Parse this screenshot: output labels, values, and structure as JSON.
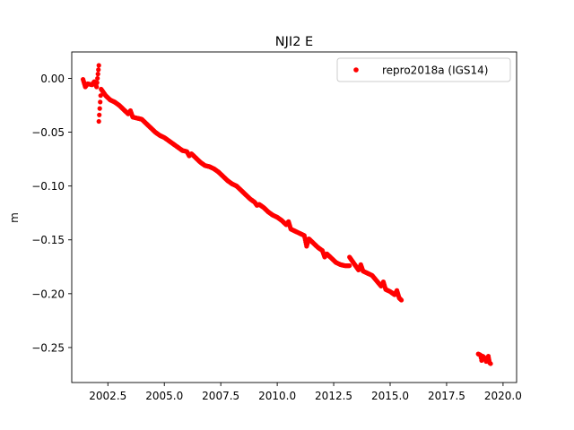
{
  "chart_data": {
    "type": "scatter",
    "title": "NJI2 E",
    "xlabel": "",
    "ylabel": "m",
    "xlim": [
      2000.9,
      2020.6
    ],
    "ylim": [
      -0.2825,
      0.0245
    ],
    "xticks": [
      2002.5,
      2005.0,
      2007.5,
      2010.0,
      2012.5,
      2015.0,
      2017.5,
      2020.0
    ],
    "xtick_labels": [
      "2002.5",
      "2005.0",
      "2007.5",
      "2010.0",
      "2012.5",
      "2015.0",
      "2017.5",
      "2020.0"
    ],
    "yticks": [
      0.0,
      -0.05,
      -0.1,
      -0.15,
      -0.2,
      -0.25
    ],
    "ytick_labels": [
      "0.00",
      "−0.05",
      "−0.10",
      "−0.15",
      "−0.20",
      "−0.25"
    ],
    "grid": false,
    "legend_position": "top-right",
    "series": [
      {
        "name": "repro2018a (IGS14)",
        "color": "#ff0000",
        "marker": "circle",
        "points": [
          [
            2001.4,
            -0.001
          ],
          [
            2001.6,
            -0.005
          ],
          [
            2001.8,
            -0.006
          ],
          [
            2002.0,
            -0.008
          ],
          [
            2002.2,
            -0.01
          ],
          [
            2002.4,
            -0.016
          ],
          [
            2002.6,
            -0.02
          ],
          [
            2002.8,
            -0.022
          ],
          [
            2003.0,
            -0.025
          ],
          [
            2003.2,
            -0.029
          ],
          [
            2003.4,
            -0.033
          ],
          [
            2003.6,
            -0.036
          ],
          [
            2003.8,
            -0.037
          ],
          [
            2004.0,
            -0.038
          ],
          [
            2004.2,
            -0.042
          ],
          [
            2004.4,
            -0.046
          ],
          [
            2004.6,
            -0.05
          ],
          [
            2004.8,
            -0.053
          ],
          [
            2005.0,
            -0.055
          ],
          [
            2005.2,
            -0.058
          ],
          [
            2005.4,
            -0.061
          ],
          [
            2005.6,
            -0.064
          ],
          [
            2005.8,
            -0.067
          ],
          [
            2006.0,
            -0.068
          ],
          [
            2006.2,
            -0.07
          ],
          [
            2006.4,
            -0.074
          ],
          [
            2006.6,
            -0.078
          ],
          [
            2006.8,
            -0.081
          ],
          [
            2007.0,
            -0.082
          ],
          [
            2007.2,
            -0.084
          ],
          [
            2007.4,
            -0.087
          ],
          [
            2007.6,
            -0.091
          ],
          [
            2007.8,
            -0.095
          ],
          [
            2008.0,
            -0.098
          ],
          [
            2008.2,
            -0.1
          ],
          [
            2008.4,
            -0.104
          ],
          [
            2008.6,
            -0.108
          ],
          [
            2008.8,
            -0.112
          ],
          [
            2009.0,
            -0.115
          ],
          [
            2009.2,
            -0.117
          ],
          [
            2009.4,
            -0.12
          ],
          [
            2009.6,
            -0.124
          ],
          [
            2009.8,
            -0.127
          ],
          [
            2010.0,
            -0.129
          ],
          [
            2010.2,
            -0.132
          ],
          [
            2010.4,
            -0.136
          ],
          [
            2010.6,
            -0.14
          ],
          [
            2010.8,
            -0.142
          ],
          [
            2011.0,
            -0.144
          ],
          [
            2011.2,
            -0.146
          ],
          [
            2011.4,
            -0.149
          ],
          [
            2011.6,
            -0.153
          ],
          [
            2011.8,
            -0.157
          ],
          [
            2012.0,
            -0.16
          ],
          [
            2012.2,
            -0.163
          ],
          [
            2012.4,
            -0.167
          ],
          [
            2012.6,
            -0.171
          ],
          [
            2012.8,
            -0.173
          ],
          [
            2013.0,
            -0.174
          ],
          [
            2013.2,
            -0.174
          ],
          [
            2013.6,
            -0.178
          ],
          [
            2013.8,
            -0.179
          ],
          [
            2014.0,
            -0.181
          ],
          [
            2014.2,
            -0.183
          ],
          [
            2014.4,
            -0.188
          ],
          [
            2014.6,
            -0.193
          ],
          [
            2014.8,
            -0.196
          ],
          [
            2015.0,
            -0.198
          ],
          [
            2015.2,
            -0.201
          ],
          [
            2015.4,
            -0.204
          ],
          [
            2015.5,
            -0.206
          ],
          [
            2002.1,
            0.012
          ],
          [
            2002.1,
            -0.04
          ],
          [
            2011.3,
            -0.156
          ],
          [
            2013.2,
            -0.166
          ],
          [
            2013.7,
            -0.173
          ],
          [
            2001.5,
            -0.008
          ],
          [
            2001.9,
            -0.003
          ],
          [
            2003.5,
            -0.03
          ],
          [
            2006.1,
            -0.072
          ],
          [
            2009.1,
            -0.118
          ],
          [
            2010.5,
            -0.133
          ],
          [
            2012.1,
            -0.166
          ],
          [
            2014.7,
            -0.189
          ],
          [
            2015.3,
            -0.197
          ],
          [
            2018.9,
            -0.256
          ],
          [
            2019.0,
            -0.257
          ],
          [
            2019.1,
            -0.258
          ],
          [
            2019.2,
            -0.26
          ],
          [
            2019.3,
            -0.262
          ],
          [
            2019.4,
            -0.264
          ],
          [
            2019.45,
            -0.265
          ],
          [
            2019.05,
            -0.262
          ],
          [
            2019.35,
            -0.258
          ],
          [
            2019.25,
            -0.263
          ]
        ]
      }
    ]
  }
}
